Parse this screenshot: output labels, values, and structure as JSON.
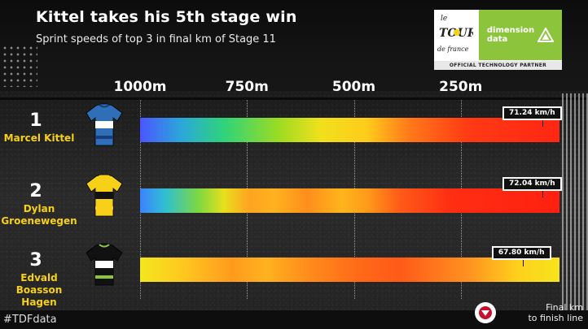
{
  "header": {
    "title": "Kittel takes his 5th stage win",
    "subtitle": "Sprint speeds of top 3 in final km of Stage 11"
  },
  "logo": {
    "tdf_text_1": "le",
    "tdf_text_2": "TOUR",
    "tdf_text_3": "de france",
    "sponsor_line1": "dimension",
    "sponsor_line2": "data",
    "partner_text": "OFFICIAL TECHNOLOGY PARTNER",
    "sponsor_color": "#8cc43c"
  },
  "footer": {
    "hashtag": "#TDFdata",
    "legend_line1": "Final km",
    "legend_line2": "to finish line",
    "legend_icon": "finish-arrow-icon"
  },
  "chart_data": {
    "type": "bar",
    "orientation": "horizontal",
    "x_axis": {
      "ticks": [
        "1000m",
        "750m",
        "500m",
        "250m"
      ],
      "tick_values": [
        1000,
        750,
        500,
        250
      ],
      "range": [
        1000,
        0
      ],
      "unit": "m"
    },
    "color_scale": [
      "#4a56ff",
      "#1ec0c8",
      "#3bd46a",
      "#c8e01e",
      "#f5e41a",
      "#ff9a1e",
      "#ff3a14"
    ],
    "riders": [
      {
        "rank": "1",
        "name": [
          "Marcel Kittel"
        ],
        "top_speed": "71.24 km/h",
        "top_speed_distance_m": 60,
        "jersey_colors": [
          "#2f6fb8",
          "#ffffff",
          "#1a3c78"
        ]
      },
      {
        "rank": "2",
        "name": [
          "Dylan",
          "Groenewegen"
        ],
        "top_speed": "72.04 km/h",
        "top_speed_distance_m": 60,
        "jersey_colors": [
          "#f7d117",
          "#111111",
          "#f7d117"
        ]
      },
      {
        "rank": "3",
        "name": [
          "Edvald Boasson",
          "Hagen"
        ],
        "top_speed": "67.80 km/h",
        "top_speed_distance_m": 105,
        "jersey_colors": [
          "#111111",
          "#ffffff",
          "#8cc43c"
        ]
      }
    ]
  }
}
